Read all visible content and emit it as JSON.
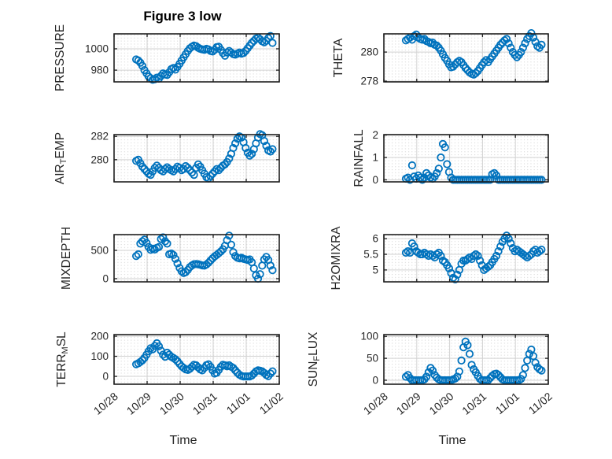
{
  "chart_data": {
    "type": "scatter",
    "title": "Figure 3 low",
    "xlabel": "Time",
    "marker": {
      "shape": "open-circle",
      "color": "#0072BD",
      "radius": 4.2,
      "stroke_width": 1.8
    },
    "colors": {
      "marker": "#0072BD",
      "grid_major": "#d2d2d2",
      "grid_minor_dot": "#d8d8d8",
      "axis_box": "#1f1f1f",
      "tick_text": "#262626",
      "title_text": "#000000",
      "background": "#ffffff"
    },
    "grid": {
      "major": "solid",
      "minor": "dotted-lattice"
    },
    "x": {
      "lim": [
        0,
        5
      ],
      "ticks": [
        0,
        1,
        2,
        3,
        4,
        5
      ],
      "ticklabels": [
        "10/28",
        "10/29",
        "10/30",
        "10/31",
        "11/01",
        "11/02"
      ],
      "ticklabel_rotation_deg": -40,
      "t_days_from_10_28": [
        0.67,
        0.733,
        0.795,
        0.858,
        0.92,
        0.983,
        1.045,
        1.108,
        1.17,
        1.233,
        1.295,
        1.358,
        1.42,
        1.483,
        1.545,
        1.608,
        1.67,
        1.733,
        1.795,
        1.858,
        1.92,
        1.983,
        2.045,
        2.108,
        2.17,
        2.233,
        2.295,
        2.358,
        2.42,
        2.483,
        2.545,
        2.608,
        2.67,
        2.733,
        2.795,
        2.858,
        2.92,
        2.983,
        3.045,
        3.108,
        3.17,
        3.233,
        3.295,
        3.358,
        3.42,
        3.483,
        3.545,
        3.608,
        3.67,
        3.733,
        3.795,
        3.858,
        3.92,
        3.983,
        4.045,
        4.108,
        4.17,
        4.233,
        4.295,
        4.358,
        4.42,
        4.483,
        4.545,
        4.608,
        4.67,
        4.733,
        4.795
      ]
    },
    "subplots": [
      {
        "name": "pressure",
        "ylabel": [
          {
            "t": "PRESSURE"
          }
        ],
        "ylim": [
          969,
          1014
        ],
        "yticks": [
          980,
          1000
        ],
        "values": [
          990,
          989,
          987,
          984,
          980,
          977,
          974,
          972.5,
          971,
          971.5,
          973,
          972,
          974.5,
          977,
          976,
          975.5,
          978,
          981,
          982,
          980.5,
          983,
          986,
          989,
          992,
          995,
          998,
          1000.5,
          1002,
          1003,
          1002.5,
          1001,
          1000,
          999.5,
          999,
          1000,
          999.5,
          998,
          997.5,
          999,
          1001.5,
          1002,
          999,
          996,
          993.5,
          996.5,
          998,
          996.5,
          995,
          994.5,
          995.5,
          996.5,
          995.5,
          996,
          998,
          1000.5,
          1003,
          1005.5,
          1007.5,
          1009.5,
          1010.5,
          1009,
          1007,
          1006,
          1007.5,
          1010,
          1012,
          1005.5
        ]
      },
      {
        "name": "theta",
        "ylabel": [
          {
            "t": "THETA"
          }
        ],
        "ylim": [
          277.95,
          281.25
        ],
        "yticks": [
          278,
          280
        ],
        "values": [
          280.8,
          280.9,
          281.0,
          280.85,
          281.1,
          281.2,
          281.0,
          280.9,
          280.85,
          280.9,
          280.75,
          280.7,
          280.6,
          280.65,
          280.5,
          280.45,
          280.3,
          280.1,
          279.85,
          279.6,
          279.4,
          279.15,
          278.95,
          279.0,
          279.15,
          279.3,
          279.4,
          279.3,
          279.1,
          278.9,
          278.75,
          278.6,
          278.5,
          278.45,
          278.55,
          278.7,
          278.9,
          279.1,
          279.3,
          279.45,
          279.3,
          279.5,
          279.7,
          279.9,
          280.1,
          280.3,
          280.5,
          280.65,
          280.8,
          280.9,
          280.6,
          280.3,
          280.0,
          279.8,
          279.65,
          279.8,
          280.0,
          280.3,
          280.6,
          280.9,
          281.1,
          281.3,
          281.0,
          280.7,
          280.4,
          280.3,
          280.5
        ]
      },
      {
        "name": "air-temp",
        "ylabel": [
          {
            "t": "AIR"
          },
          {
            "t": "T",
            "sub": true
          },
          {
            "t": "EMP"
          }
        ],
        "ylim": [
          278.1,
          282.15
        ],
        "yticks": [
          280,
          282
        ],
        "values": [
          279.9,
          280.0,
          279.7,
          279.4,
          279.2,
          279.0,
          278.8,
          278.7,
          279.0,
          279.3,
          279.5,
          279.3,
          279.1,
          279.0,
          279.2,
          279.35,
          279.2,
          279.1,
          279.0,
          279.2,
          279.4,
          279.3,
          279.1,
          279.2,
          279.45,
          279.3,
          279.1,
          278.9,
          278.7,
          279.3,
          279.6,
          279.4,
          279.1,
          278.8,
          278.5,
          278.4,
          278.6,
          278.8,
          279.0,
          279.2,
          279.1,
          279.3,
          279.5,
          279.6,
          279.8,
          280.1,
          280.5,
          281.0,
          281.4,
          281.8,
          282.0,
          281.9,
          281.5,
          281.0,
          280.6,
          280.35,
          280.5,
          280.9,
          281.4,
          281.9,
          282.2,
          282.1,
          281.6,
          281.2,
          280.8,
          280.7,
          280.9
        ]
      },
      {
        "name": "rainfall",
        "ylabel": [
          {
            "t": "RAINFALL"
          }
        ],
        "ylim": [
          -0.09,
          2.02
        ],
        "yticks": [
          0,
          1,
          2
        ],
        "values": [
          0.05,
          0.1,
          0,
          0.65,
          0.15,
          0.05,
          0.2,
          0.1,
          0,
          0.1,
          0.3,
          0.2,
          0.1,
          0.05,
          0.15,
          0.3,
          0.5,
          1.0,
          1.6,
          1.45,
          0.7,
          0.35,
          0.1,
          0,
          0,
          0,
          0,
          0,
          0,
          0,
          0,
          0,
          0,
          0,
          0,
          0,
          0,
          0,
          0,
          0,
          0,
          0,
          0.25,
          0.3,
          0.2,
          0,
          0,
          0,
          0,
          0,
          0,
          0,
          0,
          0,
          0,
          0,
          0,
          0,
          0,
          0,
          0,
          0,
          0,
          0,
          0,
          0,
          0
        ]
      },
      {
        "name": "mixdepth",
        "ylabel": [
          {
            "t": "MIXDEPTH"
          }
        ],
        "ylim": [
          -56,
          778
        ],
        "yticks": [
          0,
          500
        ],
        "values": [
          400,
          430,
          620,
          660,
          690,
          630,
          560,
          510,
          530,
          515,
          545,
          560,
          700,
          730,
          660,
          620,
          430,
          445,
          420,
          350,
          270,
          190,
          130,
          100,
          115,
          155,
          205,
          235,
          255,
          260,
          255,
          245,
          235,
          230,
          250,
          280,
          320,
          360,
          395,
          420,
          450,
          480,
          520,
          580,
          680,
          760,
          600,
          470,
          400,
          370,
          360,
          370,
          350,
          340,
          330,
          340,
          290,
          180,
          60,
          0,
          80,
          230,
          340,
          385,
          330,
          230,
          150
        ]
      },
      {
        "name": "h2omixra",
        "ylabel": [
          {
            "t": "H2OMIXRA"
          }
        ],
        "ylim": [
          4.62,
          6.13
        ],
        "yticks": [
          5,
          5.5,
          6
        ],
        "values": [
          5.55,
          5.6,
          5.55,
          5.85,
          5.75,
          5.6,
          5.55,
          5.5,
          5.5,
          5.55,
          5.5,
          5.45,
          5.5,
          5.45,
          5.4,
          5.5,
          5.55,
          5.45,
          5.3,
          5.25,
          5.15,
          5.05,
          4.9,
          4.75,
          4.7,
          4.85,
          5.0,
          5.2,
          5.3,
          5.3,
          5.35,
          5.4,
          5.35,
          5.45,
          5.5,
          5.45,
          5.3,
          5.15,
          5.0,
          5.05,
          5.1,
          5.15,
          5.25,
          5.35,
          5.45,
          5.6,
          5.75,
          5.9,
          6.0,
          6.1,
          6.0,
          5.85,
          5.7,
          5.6,
          5.65,
          5.6,
          5.55,
          5.5,
          5.45,
          5.4,
          5.45,
          5.5,
          5.6,
          5.65,
          5.55,
          5.6,
          5.65
        ]
      },
      {
        "name": "terr-msl",
        "ylabel": [
          {
            "t": "TERR"
          },
          {
            "t": "M",
            "sub": true
          },
          {
            "t": "SL"
          }
        ],
        "ylim": [
          -39,
          208
        ],
        "yticks": [
          0,
          100,
          200
        ],
        "values": [
          60,
          65,
          72,
          80,
          92,
          108,
          125,
          140,
          135,
          152,
          165,
          150,
          128,
          108,
          98,
          118,
          108,
          98,
          92,
          85,
          75,
          62,
          50,
          42,
          35,
          32,
          38,
          48,
          58,
          55,
          45,
          35,
          30,
          42,
          56,
          60,
          48,
          30,
          14,
          18,
          32,
          48,
          58,
          55,
          50,
          55,
          48,
          42,
          30,
          18,
          8,
          2,
          0,
          0,
          0,
          0,
          4,
          14,
          25,
          30,
          28,
          25,
          17,
          7,
          1,
          14,
          25
        ]
      },
      {
        "name": "sun-flux",
        "ylabel": [
          {
            "t": "SUN"
          },
          {
            "t": "F",
            "sub": true
          },
          {
            "t": "LUX"
          }
        ],
        "ylim": [
          -9,
          104
        ],
        "yticks": [
          0,
          50,
          100
        ],
        "values": [
          8,
          12,
          5,
          0,
          0,
          0,
          0,
          0,
          0,
          2,
          8,
          18,
          28,
          22,
          12,
          6,
          2,
          0,
          0,
          0,
          0,
          0,
          0,
          2,
          4,
          8,
          20,
          45,
          75,
          88,
          80,
          60,
          35,
          25,
          18,
          10,
          3,
          0,
          0,
          0,
          0,
          5,
          10,
          14,
          15,
          12,
          7,
          2,
          0,
          0,
          0,
          0,
          0,
          0,
          0,
          0,
          3,
          12,
          28,
          45,
          60,
          70,
          55,
          40,
          30,
          25,
          22
        ]
      }
    ]
  }
}
